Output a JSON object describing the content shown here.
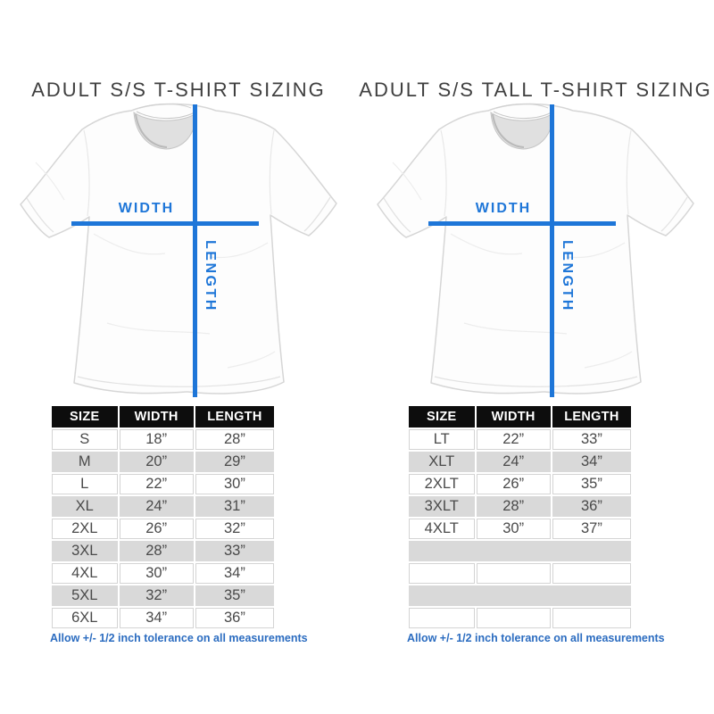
{
  "colors": {
    "accent_blue": "#1e76d8",
    "note_blue": "#2b6cc0",
    "header_bg": "#0d0d0d",
    "row_gray": "#d9d9d9",
    "title_gray": "#3f3f3f"
  },
  "panels": [
    {
      "title": "ADULT S/S T-SHIRT SIZING",
      "diagram": {
        "width_label": "WIDTH",
        "length_label": "LENGTH"
      },
      "table": {
        "headers": [
          "SIZE",
          "WIDTH",
          "LENGTH"
        ],
        "rows": [
          [
            "S",
            "18”",
            "28”"
          ],
          [
            "M",
            "20”",
            "29”"
          ],
          [
            "L",
            "22”",
            "30”"
          ],
          [
            "XL",
            "24”",
            "31”"
          ],
          [
            "2XL",
            "26”",
            "32”"
          ],
          [
            "3XL",
            "28”",
            "33”"
          ],
          [
            "4XL",
            "30”",
            "34”"
          ],
          [
            "5XL",
            "32”",
            "35”"
          ],
          [
            "6XL",
            "34”",
            "36”"
          ]
        ]
      },
      "footnote": "Allow +/- 1/2 inch tolerance on all measurements"
    },
    {
      "title": "ADULT S/S TALL T-SHIRT SIZING",
      "diagram": {
        "width_label": "WIDTH",
        "length_label": "LENGTH"
      },
      "table": {
        "headers": [
          "SIZE",
          "WIDTH",
          "LENGTH"
        ],
        "rows": [
          [
            "LT",
            "22”",
            "33”"
          ],
          [
            "XLT",
            "24”",
            "34”"
          ],
          [
            "2XLT",
            "26”",
            "35”"
          ],
          [
            "3XLT",
            "28”",
            "36”"
          ],
          [
            "4XLT",
            "30”",
            "37”"
          ],
          [
            "",
            "",
            ""
          ],
          [
            "",
            "",
            ""
          ],
          [
            "",
            "",
            ""
          ],
          [
            "",
            "",
            ""
          ]
        ]
      },
      "footnote": "Allow +/- 1/2 inch tolerance on all measurements"
    }
  ]
}
